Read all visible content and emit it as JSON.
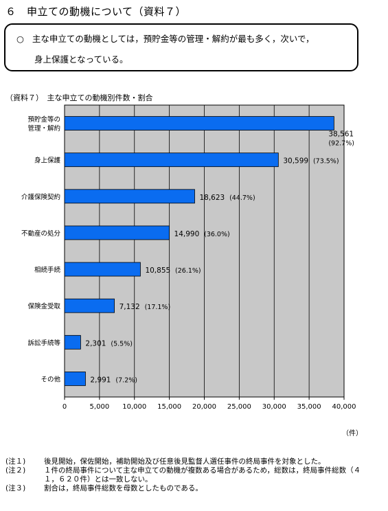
{
  "heading": "６　申立ての動機について（資料７）",
  "summary": {
    "bullet": "○",
    "line1": "主な申立ての動機としては，預貯金等の管理・解約が最も多く，次いで，",
    "line2": "身上保護となっている。"
  },
  "caption": "（資料７）　主な申立ての動機別件数・割合",
  "chart_data": {
    "type": "bar",
    "orientation": "horizontal",
    "categories": [
      "預貯金等の管理・解約",
      "身上保護",
      "介護保険契約",
      "不動産の処分",
      "相続手続",
      "保険金受取",
      "訴訟手続等",
      "その他"
    ],
    "category_lines": [
      [
        "預貯金等の",
        "管理・解約"
      ],
      [
        "身上保護"
      ],
      [
        "介護保険契約"
      ],
      [
        "不動産の処分"
      ],
      [
        "相続手続"
      ],
      [
        "保険金受取"
      ],
      [
        "訴訟手続等"
      ],
      [
        "その他"
      ]
    ],
    "values": [
      38561,
      30599,
      18623,
      14990,
      10855,
      7132,
      2301,
      2991
    ],
    "data_labels": [
      "38,561",
      "30,599",
      "18,623",
      "14,990",
      "10,855",
      "7,132",
      "2,301",
      "2,991"
    ],
    "percent_labels": [
      "(92.7%)",
      "(73.5%)",
      "(44.7%)",
      "(36.0%)",
      "(26.1%)",
      "(17.1%)",
      "(5.5%)",
      "(7.2%)"
    ],
    "xlim": [
      0,
      40000
    ],
    "xticks": [
      0,
      5000,
      10000,
      15000,
      20000,
      25000,
      30000,
      35000,
      40000
    ],
    "xtick_labels": [
      "0",
      "5,000",
      "10,000",
      "15,000",
      "20,000",
      "25,000",
      "30,000",
      "35,000",
      "40,000"
    ],
    "unit": "（件）",
    "bar_color": "#0a6cf0",
    "plot_background": "#c8c8c8",
    "grid": true
  },
  "notes": [
    {
      "label": "(注１)",
      "text": "後見開始，保佐開始，補助開始及び任意後見監督人選任事件の終局事件を対象とした。"
    },
    {
      "label": "(注２)",
      "text": "１件の終局事件について主な申立ての動機が複数ある場合があるため，総数は，終局事件総数（４１，６２０件）とは一致しない。"
    },
    {
      "label": "(注３)",
      "text": "割合は，終局事件総数を母数としたものである。"
    }
  ]
}
